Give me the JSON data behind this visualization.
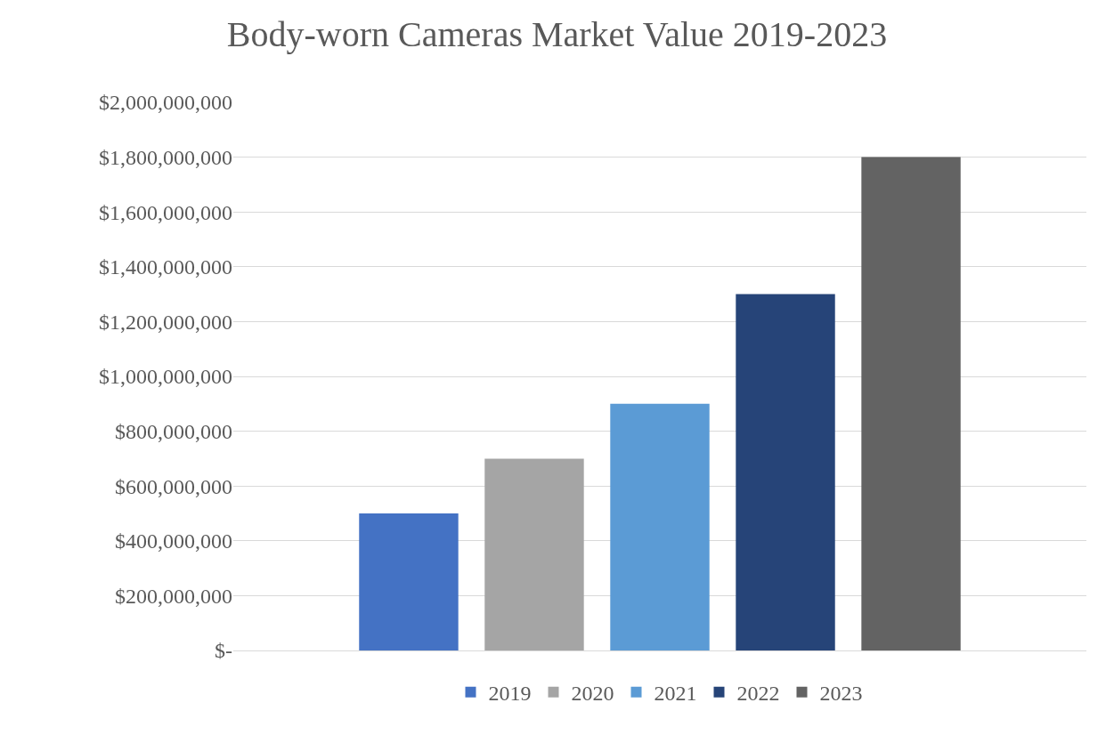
{
  "chart_data": {
    "type": "bar",
    "title": "Body-worn Cameras Market Value 2019-2023",
    "categories": [
      null
    ],
    "series": [
      {
        "name": "2019",
        "color": "#4472c4",
        "values": [
          500000000
        ]
      },
      {
        "name": "2020",
        "color": "#a5a5a5",
        "values": [
          700000000
        ]
      },
      {
        "name": "2021",
        "color": "#5b9bd5",
        "values": [
          900000000
        ]
      },
      {
        "name": "2022",
        "color": "#264478",
        "values": [
          1300000000
        ]
      },
      {
        "name": "2023",
        "color": "#636363",
        "values": [
          1800000000
        ]
      }
    ],
    "ylim": [
      0,
      2000000000
    ],
    "yticks": [
      {
        "value": 0,
        "label": "$-"
      },
      {
        "value": 200000000,
        "label": "$200,000,000"
      },
      {
        "value": 400000000,
        "label": "$400,000,000"
      },
      {
        "value": 600000000,
        "label": "$600,000,000"
      },
      {
        "value": 800000000,
        "label": "$800,000,000"
      },
      {
        "value": 1000000000,
        "label": "$1,000,000,000"
      },
      {
        "value": 1200000000,
        "label": "$1,200,000,000"
      },
      {
        "value": 1400000000,
        "label": "$1,400,000,000"
      },
      {
        "value": 1600000000,
        "label": "$1,600,000,000"
      },
      {
        "value": 1800000000,
        "label": "$1,800,000,000"
      },
      {
        "value": 2000000000,
        "label": "$2,000,000,000"
      }
    ],
    "grid": "y",
    "legend": "bottom"
  }
}
